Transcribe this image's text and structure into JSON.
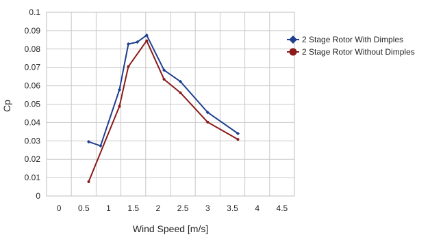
{
  "chart_data": {
    "type": "line",
    "title": "",
    "xlabel": "Wind Speed [m/s]",
    "ylabel": "Cp",
    "xlim": [
      -0.25,
      4.75
    ],
    "ylim": [
      0,
      0.1
    ],
    "x_ticks": [
      0,
      0.5,
      1,
      1.5,
      2,
      2.5,
      3,
      3.5,
      4,
      4.5
    ],
    "x_tick_labels": [
      "0",
      "0.5",
      "1",
      "1.5",
      "2",
      "2.5",
      "3",
      "3.5",
      "4",
      "4.5"
    ],
    "y_ticks": [
      0,
      0.01,
      0.02,
      0.03,
      0.04,
      0.05,
      0.06,
      0.07,
      0.08,
      0.09,
      0.1
    ],
    "y_tick_labels": [
      "0",
      "0.01",
      "0.02",
      "0.03",
      "0.04",
      "0.05",
      "0.06",
      "0.07",
      "0.08",
      "0.09",
      "0.1"
    ],
    "grid": true,
    "legend_position": "right",
    "series": [
      {
        "name": "2 Stage Rotor With Dimples",
        "color": "#1f3f8f",
        "marker": "diamond",
        "x": [
          0.6,
          0.84,
          1.22,
          1.4,
          1.58,
          1.77,
          2.12,
          2.45,
          3.0,
          3.61
        ],
        "y": [
          0.0295,
          0.0273,
          0.0578,
          0.0827,
          0.0838,
          0.0875,
          0.0685,
          0.0623,
          0.0455,
          0.034
        ]
      },
      {
        "name": "2 Stage Rotor Without Dimples",
        "color": "#8b1a1a",
        "marker": "circle",
        "x": [
          0.6,
          1.22,
          1.4,
          1.77,
          2.12,
          2.45,
          3.0,
          3.61
        ],
        "y": [
          0.0078,
          0.0488,
          0.0705,
          0.0845,
          0.0635,
          0.0562,
          0.0402,
          0.0308
        ]
      }
    ]
  }
}
